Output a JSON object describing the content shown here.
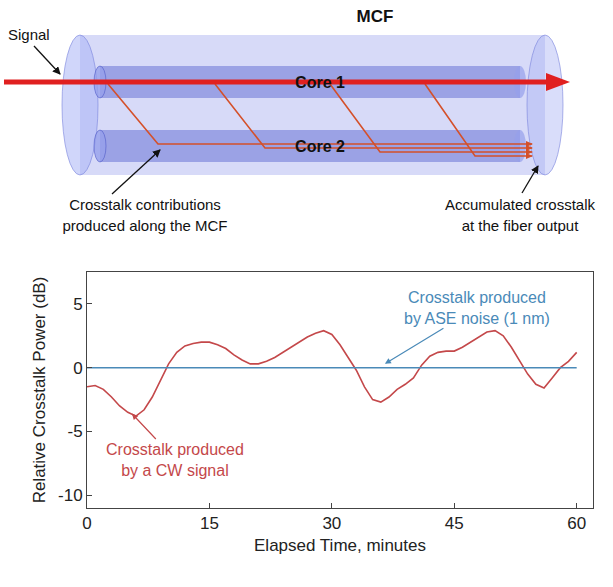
{
  "diagram": {
    "title": "MCF",
    "signal_label": "Signal",
    "cores": [
      "Core 1",
      "Core 2"
    ],
    "left_note": [
      "Crosstalk contributions",
      "produced along the MCF"
    ],
    "right_note": [
      "Accumulated crosstalk",
      "at the fiber output"
    ]
  },
  "chart_data": {
    "type": "line",
    "x_label": "Elapsed Time, minutes",
    "y_label": "Relative Crosstalk Power (dB)",
    "xlim": [
      0,
      62
    ],
    "xticks": [
      0,
      15,
      30,
      45,
      60
    ],
    "ylim": [
      -11,
      7.5
    ],
    "yticks": [
      -10,
      -5,
      0,
      5
    ],
    "grid": false,
    "series": [
      {
        "name": "Crosstalk produced by a CW signal",
        "color": "#c4484a",
        "x": [
          0,
          1,
          2,
          3,
          4,
          5,
          6,
          7,
          8,
          9,
          10,
          11,
          12,
          13,
          14,
          15,
          16,
          17,
          18,
          19,
          20,
          21,
          22,
          23,
          24,
          25,
          26,
          27,
          28,
          29,
          30,
          31,
          32,
          33,
          34,
          35,
          36,
          37,
          38,
          39,
          40,
          41,
          42,
          43,
          44,
          45,
          46,
          47,
          48,
          49,
          50,
          51,
          52,
          53,
          54,
          55,
          56,
          57,
          58,
          59,
          60
        ],
        "values": [
          -1.5,
          -1.4,
          -1.7,
          -2.3,
          -3.0,
          -3.5,
          -3.8,
          -3.3,
          -2.3,
          -1.0,
          0.3,
          1.2,
          1.7,
          1.9,
          2.0,
          2.0,
          1.8,
          1.5,
          1.0,
          0.6,
          0.3,
          0.3,
          0.5,
          0.8,
          1.2,
          1.6,
          2.0,
          2.4,
          2.7,
          2.9,
          2.6,
          1.8,
          0.8,
          -0.2,
          -1.5,
          -2.5,
          -2.7,
          -2.3,
          -1.7,
          -1.3,
          -0.8,
          0.2,
          0.9,
          1.2,
          1.3,
          1.3,
          1.6,
          2.0,
          2.4,
          2.8,
          2.9,
          2.5,
          1.6,
          0.5,
          -0.5,
          -1.3,
          -1.6,
          -0.8,
          0.0,
          0.5,
          1.2
        ]
      },
      {
        "name": "Crosstalk produced by ASE noise (1 nm)",
        "color": "#4a8ab8",
        "x": [
          0,
          10,
          20,
          30,
          40,
          50,
          60
        ],
        "values": [
          0,
          0,
          0,
          0,
          0,
          0,
          0
        ]
      }
    ],
    "annotations": [
      {
        "lines": [
          "Crosstalk produced",
          "by ASE noise (1 nm)"
        ],
        "color": "#4a8ab8",
        "x": 36.5,
        "y": 0.3,
        "text_x": 47.8,
        "text_y": 4.7
      },
      {
        "lines": [
          "Crosstalk produced",
          "by a CW signal"
        ],
        "color": "#c4484a",
        "x": 5.5,
        "y": -3.6,
        "text_x": 10.8,
        "text_y": -7.2
      }
    ]
  }
}
